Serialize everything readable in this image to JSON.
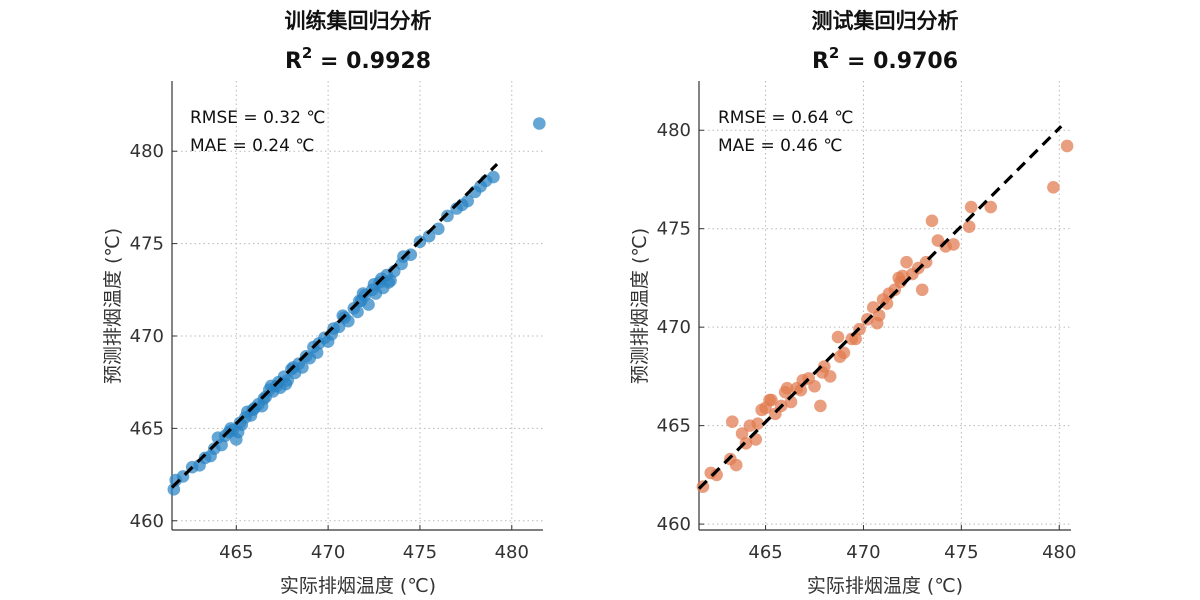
{
  "chart_data": [
    {
      "type": "scatter",
      "title": "训练集回归分析",
      "r2_label": "R",
      "r2_sup": "2",
      "r2_value_text": " = 0.9928",
      "xlabel": "实际排烟温度 (℃)",
      "ylabel": "预测排烟温度 (℃)",
      "xlim": [
        461.5,
        481.7
      ],
      "ylim": [
        459.5,
        483.8
      ],
      "xticks": [
        465,
        470,
        475,
        480
      ],
      "yticks": [
        460,
        465,
        470,
        475,
        480
      ],
      "grid": true,
      "metrics": [
        "RMSE = 0.32 ℃",
        "MAE = 0.24 ℃"
      ],
      "color": "#2a83c4",
      "fit_line": {
        "x": [
          461.5,
          479.2
        ],
        "y": [
          461.8,
          479.3
        ],
        "style": "dashed",
        "color": "#000000"
      },
      "series": [
        {
          "x": [
            461.6,
            461.7,
            462.1,
            462.6,
            463.0,
            463.3,
            463.6,
            463.8,
            464.0,
            464.2,
            464.4,
            464.6,
            464.8,
            465.0,
            465.2,
            465.3,
            465.5,
            465.6,
            465.8,
            466.0,
            466.2,
            466.4,
            466.6,
            466.8,
            467.0,
            467.2,
            467.4,
            467.6,
            467.8,
            468.0,
            468.2,
            468.4,
            468.6,
            468.8,
            469.0,
            469.2,
            469.5,
            469.8,
            470.0,
            470.3,
            470.6,
            470.9,
            471.1,
            471.4,
            471.6,
            471.8,
            472.0,
            472.2,
            472.4,
            472.6,
            472.8,
            473.0,
            473.2,
            473.4,
            473.6,
            474.0,
            474.5,
            475.0,
            475.5,
            476.0,
            476.5,
            477.0,
            477.3,
            477.6,
            478.0,
            478.3,
            478.6,
            479.0,
            481.5,
            464.7,
            465.1,
            465.9,
            466.5,
            467.3,
            468.1,
            469.4,
            470.8,
            471.7,
            472.5,
            473.3,
            474.1,
            466.9,
            467.7,
            470.2,
            471.9,
            472.9
          ],
          "y": [
            461.7,
            462.2,
            462.4,
            462.9,
            463.0,
            463.4,
            463.5,
            463.9,
            464.5,
            464.1,
            464.6,
            464.8,
            464.9,
            464.4,
            465.3,
            465.2,
            465.6,
            465.9,
            465.7,
            466.1,
            466.3,
            466.2,
            466.7,
            467.1,
            467.0,
            467.3,
            467.2,
            467.8,
            467.6,
            468.2,
            468.0,
            468.5,
            468.3,
            468.9,
            468.8,
            469.4,
            469.6,
            469.9,
            469.7,
            470.4,
            470.5,
            471.0,
            470.8,
            471.5,
            471.3,
            471.9,
            472.2,
            471.7,
            472.5,
            472.3,
            472.9,
            472.6,
            473.3,
            473.0,
            473.5,
            473.9,
            474.4,
            475.1,
            475.4,
            475.8,
            476.5,
            476.9,
            477.1,
            477.3,
            477.8,
            478.1,
            478.4,
            478.6,
            481.5,
            465.0,
            464.8,
            466.0,
            466.6,
            467.5,
            468.3,
            469.1,
            471.1,
            471.9,
            472.8,
            472.9,
            474.3,
            467.3,
            467.4,
            470.1,
            472.3,
            473.1
          ]
        }
      ]
    },
    {
      "type": "scatter",
      "title": "测试集回归分析",
      "r2_label": "R",
      "r2_sup": "2",
      "r2_value_text": " = 0.9706",
      "xlabel": "实际排烟温度 (℃)",
      "ylabel": "预测排烟温度 (℃)",
      "xlim": [
        461.6,
        480.6
      ],
      "ylim": [
        459.7,
        482.5
      ],
      "xticks": [
        465,
        470,
        475,
        480
      ],
      "yticks": [
        460,
        465,
        470,
        475,
        480
      ],
      "grid": true,
      "metrics": [
        "RMSE = 0.64 ℃",
        "MAE = 0.46 ℃"
      ],
      "color": "#e07a4e",
      "fit_line": {
        "x": [
          461.6,
          480.1
        ],
        "y": [
          461.8,
          480.2
        ],
        "style": "dashed",
        "color": "#000000"
      },
      "series": [
        {
          "x": [
            461.8,
            462.2,
            462.5,
            463.2,
            463.3,
            463.5,
            463.8,
            464.0,
            464.2,
            464.5,
            464.8,
            465.0,
            465.2,
            465.5,
            465.8,
            466.0,
            466.3,
            466.6,
            466.9,
            467.2,
            467.5,
            467.8,
            468.0,
            468.3,
            468.7,
            469.0,
            469.4,
            469.8,
            470.2,
            470.5,
            470.8,
            471.0,
            471.3,
            471.6,
            471.9,
            472.2,
            472.5,
            472.8,
            473.2,
            473.5,
            473.8,
            474.2,
            474.6,
            475.4,
            475.5,
            476.5,
            479.7,
            480.4,
            465.3,
            466.8,
            467.9,
            468.8,
            470.7,
            471.2,
            472.0,
            464.6,
            466.1,
            469.6,
            471.8,
            473.0
          ],
          "y": [
            461.9,
            462.6,
            462.5,
            463.3,
            465.2,
            463.0,
            464.6,
            464.1,
            465.0,
            464.3,
            465.8,
            465.9,
            466.3,
            465.6,
            466.0,
            466.7,
            466.2,
            466.9,
            467.3,
            467.4,
            467.0,
            466.0,
            468.0,
            467.5,
            469.5,
            468.7,
            469.4,
            469.9,
            470.4,
            471.0,
            470.6,
            471.4,
            471.7,
            471.9,
            472.3,
            473.3,
            472.7,
            473.0,
            473.3,
            475.4,
            474.4,
            474.1,
            474.2,
            475.1,
            476.1,
            476.1,
            477.1,
            479.2,
            466.3,
            466.8,
            467.7,
            468.5,
            470.2,
            471.2,
            472.6,
            465.1,
            466.9,
            469.4,
            472.5,
            471.9
          ]
        }
      ]
    }
  ]
}
